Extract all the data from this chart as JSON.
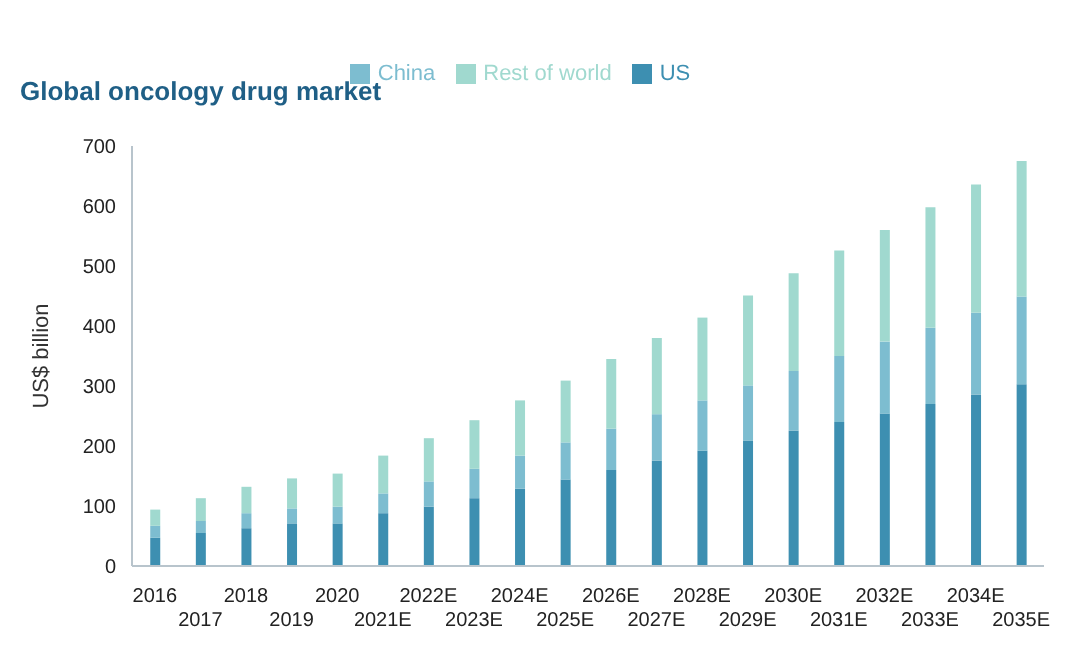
{
  "chart_data": {
    "type": "bar",
    "title": "Global oncology drug market",
    "ylabel": "US$ billion",
    "stacked": true,
    "legend": "top",
    "grid": false,
    "ylim": [
      0,
      700
    ],
    "yticks": [
      0,
      100,
      200,
      300,
      400,
      500,
      600,
      700
    ],
    "categories": [
      "2016",
      "2017",
      "2018",
      "2019",
      "2020",
      "2021E",
      "2022E",
      "2023E",
      "2024E",
      "2025E",
      "2026E",
      "2027E",
      "2028E",
      "2029E",
      "2030E",
      "2031E",
      "2032E",
      "2033E",
      "2034E",
      "2035E"
    ],
    "series": [
      {
        "name": "US",
        "color": "#3d8fb1",
        "values": [
          47,
          55,
          63,
          71,
          71,
          88,
          99,
          113,
          129,
          144,
          160,
          176,
          192,
          209,
          226,
          240,
          254,
          270,
          286,
          303
        ]
      },
      {
        "name": "China",
        "color": "#7dbdd0",
        "values": [
          20,
          20,
          25,
          25,
          28,
          33,
          42,
          49,
          55,
          62,
          69,
          77,
          84,
          92,
          99,
          110,
          120,
          127,
          136,
          146
        ]
      },
      {
        "name": "Rest of world",
        "color": "#a0d9cf",
        "values": [
          27,
          38,
          44,
          50,
          55,
          63,
          72,
          81,
          92,
          103,
          116,
          127,
          138,
          150,
          163,
          176,
          186,
          201,
          214,
          226
        ]
      }
    ]
  }
}
